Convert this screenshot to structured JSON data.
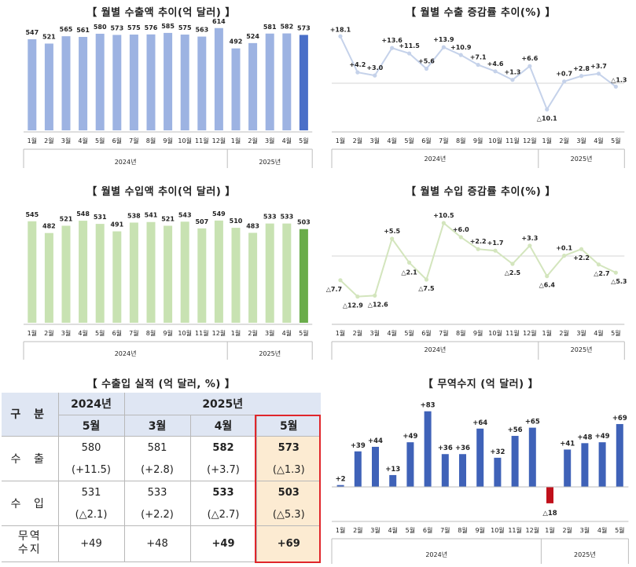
{
  "months": [
    "1월",
    "2월",
    "3월",
    "4월",
    "5월",
    "6월",
    "7월",
    "8월",
    "9월",
    "10월",
    "11월",
    "12월",
    "1월",
    "2월",
    "3월",
    "4월",
    "5월"
  ],
  "years": [
    "2024년",
    "2025년"
  ],
  "colors": {
    "export_bar": "#9db3e2",
    "export_bar_last": "#4a6fc8",
    "import_bar": "#c8e2b2",
    "import_bar_last": "#6aac4a",
    "export_line": "#c5d2ea",
    "import_line": "#d3e5bd",
    "balance_bar": "#3f62b8",
    "balance_neg": "#c0101a",
    "axis": "#bdbdbd"
  },
  "export_amount": {
    "title": "【 월별 수출액 추이(억 달러) 】",
    "chart_data": {
      "type": "bar",
      "title": "월별 수출액 추이(억 달러)",
      "categories": [
        "2024-1월",
        "2024-2월",
        "2024-3월",
        "2024-4월",
        "2024-5월",
        "2024-6월",
        "2024-7월",
        "2024-8월",
        "2024-9월",
        "2024-10월",
        "2024-11월",
        "2024-12월",
        "2025-1월",
        "2025-2월",
        "2025-3월",
        "2025-4월",
        "2025-5월"
      ],
      "values": [
        547,
        521,
        565,
        561,
        580,
        573,
        575,
        576,
        585,
        575,
        563,
        614,
        492,
        524,
        581,
        582,
        573
      ],
      "ylim": [
        0,
        660
      ]
    }
  },
  "export_growth": {
    "title": "【 월별 수출 증감률 추이(%) 】",
    "chart_data": {
      "type": "line",
      "title": "월별 수출 증감률 추이(%)",
      "categories": [
        "2024-1월",
        "2024-2월",
        "2024-3월",
        "2024-4월",
        "2024-5월",
        "2024-6월",
        "2024-7월",
        "2024-8월",
        "2024-9월",
        "2024-10월",
        "2024-11월",
        "2024-12월",
        "2025-1월",
        "2025-2월",
        "2025-3월",
        "2025-4월",
        "2025-5월"
      ],
      "values": [
        18.1,
        4.2,
        3.0,
        13.6,
        11.5,
        5.6,
        13.9,
        10.9,
        7.1,
        4.6,
        1.3,
        6.6,
        -10.1,
        0.7,
        2.8,
        3.7,
        -1.3
      ],
      "labels": [
        "+18.1",
        "+4.2",
        "+3.0",
        "+13.6",
        "+11.5",
        "+5.6",
        "+13.9",
        "+10.9",
        "+7.1",
        "+4.6",
        "+1.3",
        "+6.6",
        "△10.1",
        "+0.7",
        "+2.8",
        "+3.7",
        "△1.3"
      ],
      "ylim": [
        -14,
        21
      ]
    }
  },
  "import_amount": {
    "title": "【 월별 수입액 추이(억 달러) 】",
    "chart_data": {
      "type": "bar",
      "title": "월별 수입액 추이(억 달러)",
      "categories": [
        "2024-1월",
        "2024-2월",
        "2024-3월",
        "2024-4월",
        "2024-5월",
        "2024-6월",
        "2024-7월",
        "2024-8월",
        "2024-9월",
        "2024-10월",
        "2024-11월",
        "2024-12월",
        "2025-1월",
        "2025-2월",
        "2025-3월",
        "2025-4월",
        "2025-5월"
      ],
      "values": [
        545,
        482,
        521,
        548,
        531,
        491,
        538,
        541,
        521,
        543,
        507,
        549,
        510,
        483,
        533,
        533,
        503
      ],
      "ylim": [
        0,
        620
      ]
    }
  },
  "import_growth": {
    "title": "【 월별 수입 증감률 추이(%) 】",
    "chart_data": {
      "type": "line",
      "title": "월별 수입 증감률 추이(%)",
      "categories": [
        "2024-1월",
        "2024-2월",
        "2024-3월",
        "2024-4월",
        "2024-5월",
        "2024-6월",
        "2024-7월",
        "2024-8월",
        "2024-9월",
        "2024-10월",
        "2024-11월",
        "2024-12월",
        "2025-1월",
        "2025-2월",
        "2025-3월",
        "2025-4월",
        "2025-5월"
      ],
      "values": [
        -7.7,
        -12.9,
        -12.6,
        5.5,
        -2.1,
        -7.5,
        10.5,
        6.0,
        2.2,
        1.7,
        -2.5,
        3.3,
        -6.4,
        0.1,
        2.2,
        -2.7,
        -5.3
      ],
      "labels": [
        "△7.7",
        "△12.9",
        "△12.6",
        "+5.5",
        "△2.1",
        "△7.5",
        "+10.5",
        "+6.0",
        "+2.2",
        "+1.7",
        "△2.5",
        "+3.3",
        "△6.4",
        "+0.1",
        "+2.2",
        "△2.7",
        "△5.3"
      ],
      "ylim": [
        -16,
        13
      ]
    }
  },
  "trade_table": {
    "title": "【 수출입 실적 (억 달러, %) 】",
    "header_label": "구  분",
    "year_2024": "2024년",
    "year_2025": "2025년",
    "cols": [
      "5월",
      "3월",
      "4월",
      "5월"
    ],
    "rows": [
      {
        "label": "수  출",
        "values": [
          "580",
          "581",
          "582",
          "573"
        ],
        "rates": [
          "(+11.5)",
          "(+2.8)",
          "(+3.7)",
          "(△1.3)"
        ]
      },
      {
        "label": "수  입",
        "values": [
          "531",
          "533",
          "533",
          "503"
        ],
        "rates": [
          "(△2.1)",
          "(+2.2)",
          "(△2.7)",
          "(△5.3)"
        ]
      }
    ],
    "balance": {
      "label_1": "무역",
      "label_2": "수지",
      "values": [
        "+49",
        "+48",
        "+49",
        "+69"
      ]
    }
  },
  "trade_balance": {
    "title": "【 무역수지 (억 달러) 】",
    "chart_data": {
      "type": "bar",
      "title": "무역수지 (억 달러)",
      "categories": [
        "2024-1월",
        "2024-2월",
        "2024-3월",
        "2024-4월",
        "2024-5월",
        "2024-6월",
        "2024-7월",
        "2024-8월",
        "2024-9월",
        "2024-10월",
        "2024-11월",
        "2024-12월",
        "2025-1월",
        "2025-2월",
        "2025-3월",
        "2025-4월",
        "2025-5월"
      ],
      "values": [
        2,
        39,
        44,
        13,
        49,
        83,
        36,
        36,
        64,
        32,
        56,
        65,
        -18,
        41,
        48,
        49,
        69
      ],
      "labels": [
        "+2",
        "+39",
        "+44",
        "+13",
        "+49",
        "+83",
        "+36",
        "+36",
        "+64",
        "+32",
        "+56",
        "+65",
        "△18",
        "+41",
        "+48",
        "+49",
        "+69"
      ],
      "ylim": [
        -30,
        90
      ]
    }
  }
}
